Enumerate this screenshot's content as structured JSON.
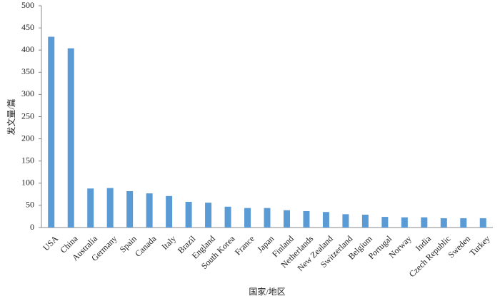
{
  "chart_data": {
    "type": "bar",
    "x_label": "国家/地区",
    "y_label": "发文量/篇",
    "categories": [
      "USA",
      "China",
      "Australia",
      "Germany",
      "Spain",
      "Canada",
      "Italy",
      "Brazil",
      "England",
      "South Korea",
      "France",
      "Japan",
      "Finland",
      "Netherlands",
      "New Zealand",
      "Switzerland",
      "Belgium",
      "Portugal",
      "Norway",
      "India",
      "Czech Republic",
      "Sweden",
      "Turkey"
    ],
    "values": [
      430,
      404,
      88,
      89,
      82,
      77,
      71,
      58,
      56,
      47,
      44,
      44,
      39,
      37,
      35,
      30,
      29,
      24,
      23,
      23,
      21,
      21,
      21
    ],
    "color": "#5b9bd5",
    "ylim": [
      0,
      500
    ],
    "yticks": [
      0,
      50,
      100,
      150,
      200,
      250,
      300,
      350,
      400,
      450,
      500
    ],
    "grid": false
  }
}
